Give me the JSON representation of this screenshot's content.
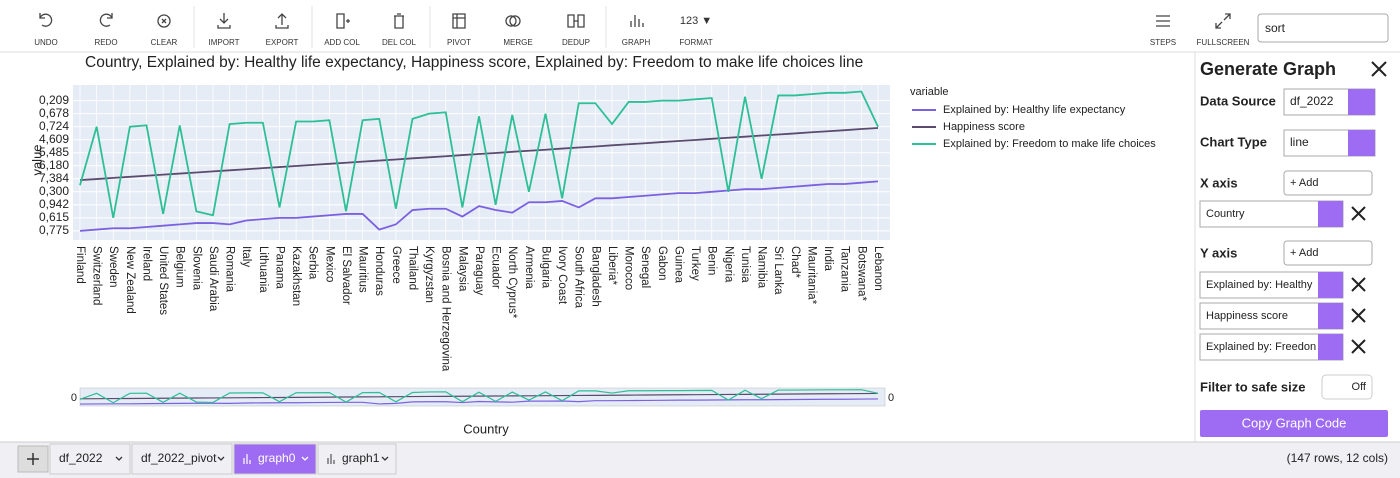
{
  "toolbar": {
    "buttons": [
      {
        "label": "UNDO"
      },
      {
        "label": "REDO"
      },
      {
        "label": "CLEAR"
      },
      {
        "label": "IMPORT"
      },
      {
        "label": "EXPORT"
      },
      {
        "label": "ADD COL"
      },
      {
        "label": "DEL COL"
      },
      {
        "label": "PIVOT"
      },
      {
        "label": "MERGE"
      },
      {
        "label": "DEDUP"
      },
      {
        "label": "GRAPH"
      }
    ],
    "format": {
      "icon_text": "123 ▼",
      "label": "FORMAT"
    },
    "right_buttons": [
      {
        "label": "STEPS"
      },
      {
        "label": "FULLSCREEN"
      }
    ],
    "search": "sort"
  },
  "chart_data": {
    "type": "line",
    "title": "Country, Explained by: Healthy life expectancy, Happiness score, Explained by: Freedom to make life choices line",
    "x_label": "Country",
    "y_label": "value",
    "legend_title": "variable",
    "categories": [
      "Finland",
      "Switzerland",
      "Sweden",
      "New Zealand",
      "Ireland",
      "United States",
      "Belgium",
      "Slovenia",
      "Saudi Arabia",
      "Romania",
      "Italy",
      "Lithuania",
      "Panama",
      "Kazakhstan",
      "Serbia",
      "Mexico",
      "El Salvador",
      "Mauritius",
      "Honduras",
      "Greece",
      "Thailand",
      "Kyrgyzstan",
      "Bosnia and Herzegovina",
      "Malaysia",
      "Paraguay",
      "Ecuador",
      "North Cyprus*",
      "Armenia",
      "Bulgaria",
      "Ivory Coast",
      "South Africa",
      "Bangladesh",
      "Liberia*",
      "Morocco",
      "Senegal",
      "Gabon",
      "Guinea",
      "Turkey",
      "Benin",
      "Nigeria",
      "Tunisia",
      "Namibia",
      "Sri Lanka",
      "Chad*",
      "Mauritania*",
      "India",
      "Tanzania",
      "Botswana*",
      "Lebanon"
    ],
    "series": [
      {
        "name": "Explained by: Healthy life expectancy",
        "color": "#7b61e0",
        "values": [
          0,
          0.1,
          0.2,
          0.2,
          0.3,
          0.4,
          0.5,
          0.6,
          0.6,
          0.5,
          0.8,
          0.9,
          1.0,
          1.0,
          1.1,
          1.2,
          1.3,
          1.3,
          0.1,
          0.5,
          1.6,
          1.7,
          1.7,
          1.1,
          1.9,
          1.6,
          1.4,
          2.2,
          2.2,
          2.3,
          1.8,
          2.5,
          2.5,
          2.6,
          2.7,
          2.8,
          2.9,
          2.9,
          3.0,
          3.1,
          3.2,
          3.2,
          3.3,
          3.4,
          3.5,
          3.6,
          3.6,
          3.7,
          3.8
        ]
      },
      {
        "name": "Happiness score",
        "color": "#5b4b6e",
        "values": [
          3.9,
          3.98,
          4.07,
          4.15,
          4.23,
          4.32,
          4.4,
          4.48,
          4.57,
          4.65,
          4.73,
          4.82,
          4.9,
          4.98,
          5.07,
          5.15,
          5.23,
          5.32,
          5.4,
          5.48,
          5.57,
          5.65,
          5.73,
          5.82,
          5.9,
          5.98,
          6.07,
          6.15,
          6.23,
          6.32,
          6.4,
          6.48,
          6.57,
          6.65,
          6.73,
          6.82,
          6.9,
          6.98,
          7.07,
          7.15,
          7.23,
          7.32,
          7.4,
          7.48,
          7.57,
          7.65,
          7.73,
          7.82,
          7.9
        ]
      },
      {
        "name": "Explained by: Freedom to make life choices",
        "color": "#2dbf95",
        "values": [
          3.5,
          8.0,
          1.0,
          8.0,
          8.1,
          1.3,
          8.1,
          1.5,
          1.2,
          8.2,
          8.3,
          8.3,
          1.8,
          8.4,
          8.4,
          8.5,
          1.5,
          8.5,
          8.6,
          1.7,
          8.6,
          9.0,
          9.1,
          1.8,
          8.8,
          2.0,
          8.9,
          3.0,
          9.0,
          2.5,
          9.8,
          9.8,
          8.2,
          9.9,
          9.9,
          10.0,
          10.0,
          10.1,
          10.2,
          3.0,
          10.3,
          4.0,
          10.4,
          10.4,
          10.5,
          10.6,
          10.6,
          10.7,
          8.0
        ]
      }
    ],
    "ylim": [
      -0.7,
      11.2
    ],
    "yticks": [
      {
        "value": 0,
        "label": "0,775"
      },
      {
        "value": 1,
        "label": "0,615"
      },
      {
        "value": 2,
        "label": "0,942"
      },
      {
        "value": 3,
        "label": "0,300"
      },
      {
        "value": 4,
        "label": "7,384"
      },
      {
        "value": 5,
        "label": "6,180"
      },
      {
        "value": 6,
        "label": "5,485"
      },
      {
        "value": 7,
        "label": "4,609"
      },
      {
        "value": 8,
        "label": "0,724"
      },
      {
        "value": 9,
        "label": "0,678"
      },
      {
        "value": 10,
        "label": "0,209"
      }
    ],
    "grid": true,
    "range_slider": {
      "left_label": "0",
      "right_label": "0"
    }
  },
  "sidebar": {
    "title": "Generate Graph",
    "data_source_label": "Data Source",
    "data_source": "df_2022",
    "chart_type_label": "Chart Type",
    "chart_type": "line",
    "x_axis_label": "X axis",
    "add_label": "+ Add",
    "x_column": "Country",
    "y_axis_label": "Y axis",
    "y_columns": [
      "Explained by: Healthy",
      "Happiness score",
      "Explained by: Freedon"
    ],
    "filter_label": "Filter to safe size",
    "filter_state": "Off",
    "copy_button": "Copy Graph Code"
  },
  "tabs": {
    "items": [
      "df_2022",
      "df_2022_pivot",
      "graph0",
      "graph1"
    ],
    "status": "(147 rows, 12 cols)"
  }
}
